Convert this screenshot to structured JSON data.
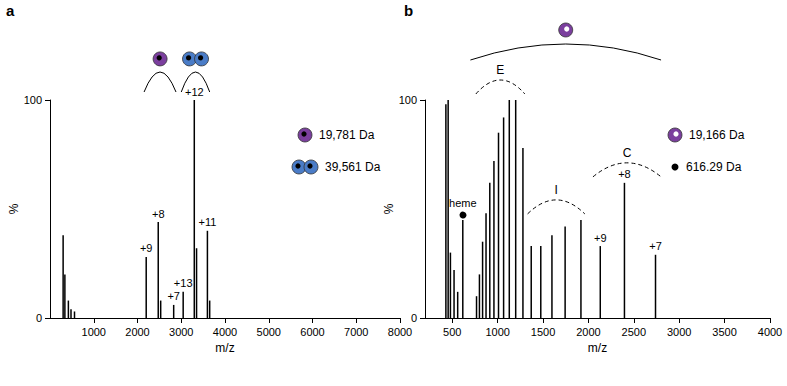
{
  "chart_data": [
    {
      "type": "bar",
      "title": "a",
      "x_label": "m/z",
      "y_label": "%",
      "xlim": [
        0,
        8000
      ],
      "xticks": [
        1000,
        2000,
        3000,
        4000,
        5000,
        6000,
        7000,
        8000
      ],
      "ylim": [
        0,
        100
      ],
      "yticks": [
        0,
        100
      ],
      "grid": false,
      "color": "#000000",
      "x": [
        300,
        340,
        420,
        480,
        560,
        2199,
        2474,
        2530,
        2827,
        3044,
        3298,
        3350,
        3598,
        3650
      ],
      "values": [
        38,
        20,
        8,
        4,
        3,
        28,
        44,
        8,
        6,
        12,
        100,
        32,
        40,
        8
      ],
      "peak_labels": [
        null,
        null,
        null,
        null,
        null,
        "+9",
        "+8",
        null,
        "+7",
        "+13",
        "+12",
        null,
        "+11",
        null
      ],
      "species": [
        {
          "name": "19,781 Da",
          "color": "#7b3f9e",
          "marker": "circle_dot",
          "range": [
            2150,
            2880
          ]
        },
        {
          "name": "39,561 Da",
          "color": "#4a7cc7",
          "marker": "double_circle_dot",
          "range": [
            3000,
            3650
          ]
        }
      ]
    },
    {
      "type": "bar",
      "title": "b",
      "x_label": "m/z",
      "y_label": "%",
      "xlim": [
        200,
        4000
      ],
      "xticks": [
        500,
        1000,
        1500,
        2000,
        2500,
        3000,
        3500,
        4000
      ],
      "ylim": [
        0,
        100
      ],
      "yticks": [
        0,
        100
      ],
      "grid": false,
      "color": "#000000",
      "x": [
        430,
        455,
        480,
        520,
        560,
        616.29,
        767.6,
        799.6,
        834.3,
        872.2,
        913.7,
        959.3,
        1009.7,
        1065.8,
        1128.4,
        1198.9,
        1278.7,
        1370.0,
        1475.3,
        1598.2,
        1743.4,
        1917.6,
        2130.6,
        2396.8,
        2739.0
      ],
      "values": [
        98,
        100,
        30,
        22,
        12,
        45,
        10,
        20,
        35,
        48,
        62,
        72,
        85,
        92,
        100,
        100,
        78,
        33,
        33,
        38,
        42,
        45,
        33,
        62,
        29
      ],
      "peak_labels": [
        null,
        null,
        null,
        null,
        null,
        "heme",
        null,
        null,
        null,
        null,
        null,
        null,
        null,
        null,
        null,
        null,
        null,
        null,
        null,
        null,
        null,
        null,
        "+9",
        "+8",
        "+7"
      ],
      "species": [
        {
          "name": "19,166 Da",
          "color": "#7b3f9e",
          "marker": "circle_white_dot",
          "range": [
            700,
            2800
          ]
        },
        {
          "name": "616.29 Da",
          "color": "#000000",
          "marker": "dot",
          "peak": 616.29
        }
      ],
      "regions": [
        {
          "label": "E",
          "range": [
            760,
            1300
          ],
          "line_style": "dashed"
        },
        {
          "label": "I",
          "range": [
            1330,
            1960
          ],
          "line_style": "dashed"
        },
        {
          "label": "C",
          "range": [
            2050,
            2800
          ],
          "line_style": "dashed"
        }
      ]
    }
  ]
}
